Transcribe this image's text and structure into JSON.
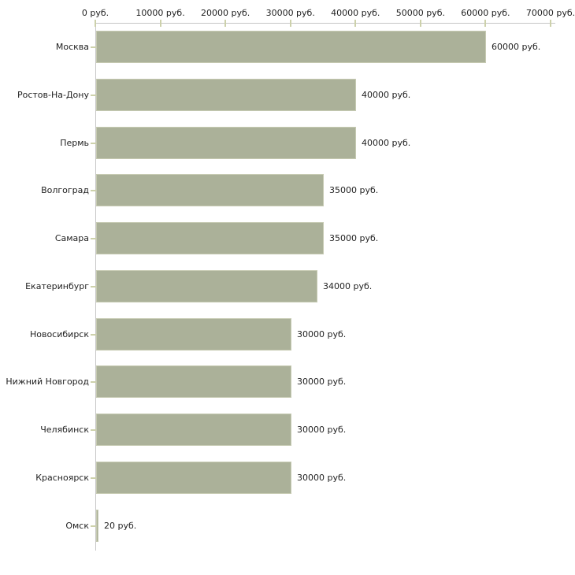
{
  "chart_data": {
    "type": "bar",
    "orientation": "horizontal",
    "title": "",
    "xlabel": "",
    "ylabel": "",
    "unit": "руб.",
    "categories": [
      "Москва",
      "Ростов-На-Дону",
      "Пермь",
      "Волгоград",
      "Самара",
      "Екатеринбург",
      "Новосибирск",
      "Нижний Новгород",
      "Челябинск",
      "Красноярск",
      "Омск"
    ],
    "values": [
      60000,
      40000,
      40000,
      35000,
      35000,
      34000,
      30000,
      30000,
      30000,
      30000,
      20
    ],
    "value_labels": [
      "60000 руб.",
      "40000 руб.",
      "40000 руб.",
      "35000 руб.",
      "35000 руб.",
      "34000 руб.",
      "30000 руб.",
      "30000 руб.",
      "30000 руб.",
      "30000 руб.",
      "20 руб."
    ],
    "xlim": [
      0,
      70000
    ],
    "x_ticks": [
      0,
      10000,
      20000,
      30000,
      40000,
      50000,
      60000,
      70000
    ],
    "x_tick_labels": [
      "0 руб.",
      "10000 руб.",
      "20000 руб.",
      "30000 руб.",
      "40000 руб.",
      "50000 руб.",
      "60000 руб.",
      "70000 руб."
    ],
    "grid": false,
    "legend_visible": false,
    "tick_label_position": "top",
    "colors": {
      "bar_fill": "#abb199",
      "bar_border": "#c6cab2",
      "axis_line": "#c6c6c6",
      "tick_mark": "#cdd1ab",
      "text": "#1f1f1f",
      "background": "#ffffff"
    }
  }
}
